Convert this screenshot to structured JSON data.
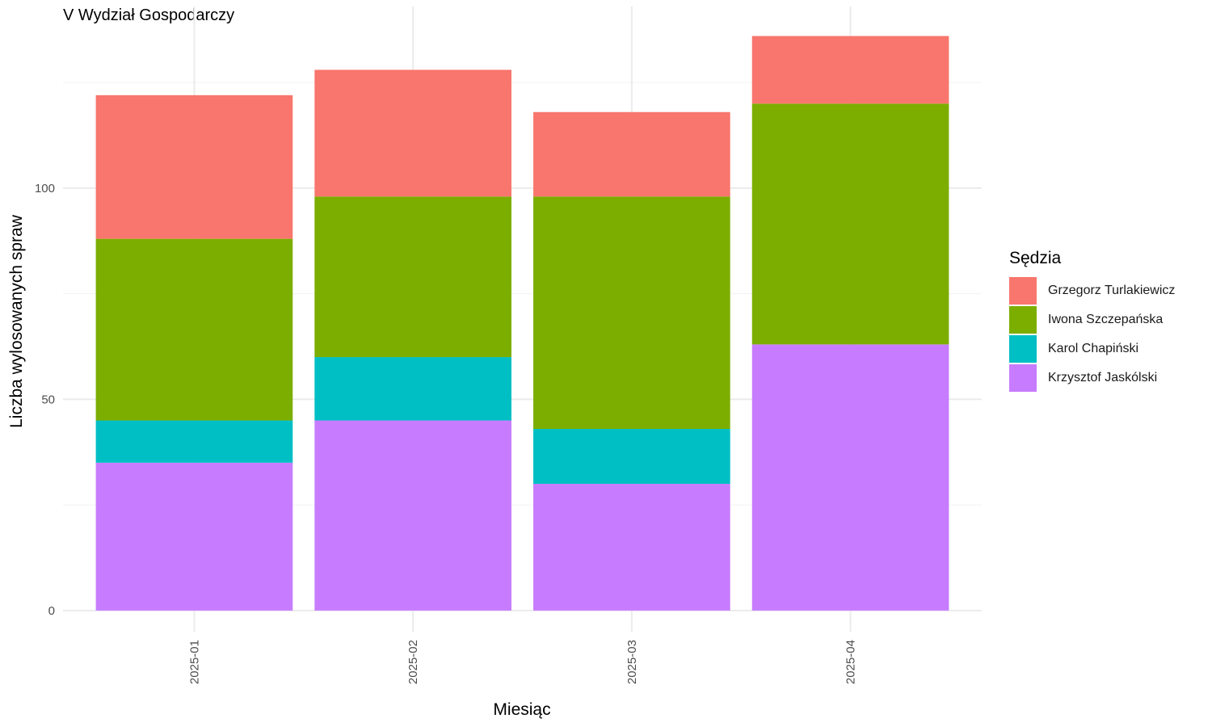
{
  "chart_data": {
    "type": "bar",
    "stacked": true,
    "title": "V Wydział Gospodarczy",
    "xlabel": "Miesiąc",
    "ylabel": "Liczba wylosowanych spraw",
    "categories": [
      "2025-01",
      "2025-02",
      "2025-03",
      "2025-04"
    ],
    "y_ticks": [
      0,
      50,
      100
    ],
    "ylim": [
      -5,
      143
    ],
    "grid": true,
    "legend_title": "Sędzia",
    "legend_position": "right",
    "series": [
      {
        "name": "Krzysztof Jaskólski",
        "color": "#C77CFF",
        "values": [
          35,
          45,
          30,
          63
        ]
      },
      {
        "name": "Karol Chapiński",
        "color": "#00BFC4",
        "values": [
          10,
          15,
          13,
          0
        ]
      },
      {
        "name": "Iwona Szczepańska",
        "color": "#7CAE00",
        "values": [
          43,
          38,
          55,
          57
        ]
      },
      {
        "name": "Grzegorz Turlakiewicz",
        "color": "#F8766D",
        "values": [
          34,
          30,
          20,
          16
        ]
      }
    ]
  }
}
